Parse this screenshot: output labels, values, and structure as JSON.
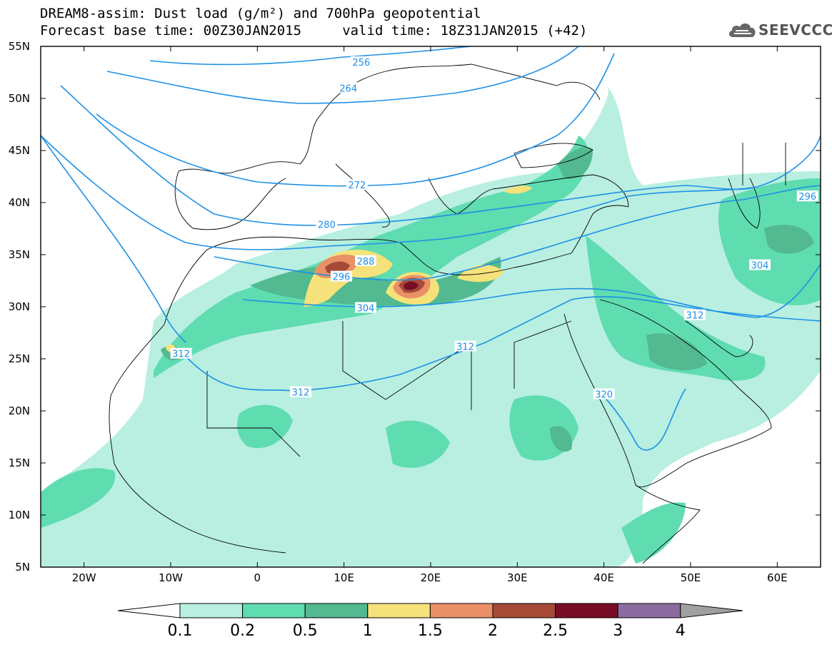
{
  "title": {
    "line1": "DREAM8-assim: Dust load (g/m²) and 700hPa geopotential",
    "line2": "Forecast base time: 00Z30JAN2015     valid time: 18Z31JAN2015 (+42)"
  },
  "logo": {
    "text": "SEEVCCC",
    "icon": "cloud-icon"
  },
  "axes": {
    "lat_ticks": [
      "55N",
      "50N",
      "45N",
      "40N",
      "35N",
      "30N",
      "25N",
      "20N",
      "15N",
      "10N",
      "5N"
    ],
    "lon_ticks": [
      "20W",
      "10W",
      "0",
      "10E",
      "20E",
      "30E",
      "40E",
      "50E",
      "60E"
    ],
    "lon_range": [
      -25,
      65
    ],
    "lat_range": [
      5,
      55
    ]
  },
  "contours": {
    "color": "#1e90e6",
    "labels": [
      {
        "text": "256",
        "lon": 12.0,
        "lat": 53.5
      },
      {
        "text": "264",
        "lon": 10.5,
        "lat": 51.0
      },
      {
        "text": "272",
        "lon": 11.5,
        "lat": 41.7
      },
      {
        "text": "280",
        "lon": 8.0,
        "lat": 37.9
      },
      {
        "text": "288",
        "lon": 12.5,
        "lat": 34.4
      },
      {
        "text": "296",
        "lon": 9.7,
        "lat": 32.9
      },
      {
        "text": "304",
        "lon": 12.5,
        "lat": 29.9
      },
      {
        "text": "312",
        "lon": -8.8,
        "lat": 25.5
      },
      {
        "text": "312",
        "lon": 5.0,
        "lat": 21.8
      },
      {
        "text": "312",
        "lon": 24.0,
        "lat": 26.2
      },
      {
        "text": "312",
        "lon": 50.5,
        "lat": 29.2
      },
      {
        "text": "304",
        "lon": 58.0,
        "lat": 34.0
      },
      {
        "text": "296",
        "lon": 63.5,
        "lat": 40.6
      },
      {
        "text": "320",
        "lon": 40.0,
        "lat": 21.6
      }
    ]
  },
  "colorbar": {
    "labels": [
      "0.1",
      "0.2",
      "0.5",
      "1",
      "1.5",
      "2",
      "2.5",
      "3",
      "4"
    ],
    "colors": [
      "#b8efe1",
      "#5fdcb0",
      "#52b990",
      "#f6e27a",
      "#ea9066",
      "#a64a38",
      "#780e26",
      "#8b6ba0"
    ],
    "under_color": "#ffffff",
    "over_color": "#a0a0a0"
  },
  "dust_colors": {
    "light": "#b8efe1",
    "medium": "#5fdcb0",
    "dark": "#52b990",
    "yellow": "#f6e27a",
    "orange": "#ea9066",
    "brown": "#a64a38",
    "maroon": "#780e26"
  }
}
